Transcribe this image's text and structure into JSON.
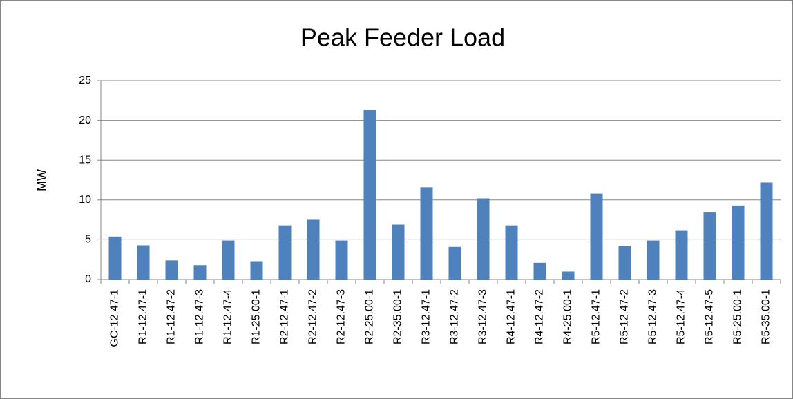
{
  "chart_data": {
    "type": "bar",
    "title": "Peak Feeder Load",
    "y_label": "MW",
    "categories": [
      "GC-12.47-1",
      "R1-12.47-1",
      "R1-12.47-2",
      "R1-12.47-3",
      "R1-12.47-4",
      "R1-25.00-1",
      "R2-12.47-1",
      "R2-12.47-2",
      "R2-12.47-3",
      "R2-25.00-1",
      "R2-35.00-1",
      "R3-12.47-1",
      "R3-12.47-2",
      "R3-12.47-3",
      "R4-12.47-1",
      "R4-12.47-2",
      "R4-25.00-1",
      "R5-12.47-1",
      "R5-12.47-2",
      "R5-12.47-3",
      "R5-12.47-4",
      "R5-12.47-5",
      "R5-25.00-1",
      "R5-35.00-1"
    ],
    "values": [
      5.4,
      4.3,
      2.4,
      1.8,
      4.9,
      2.3,
      6.8,
      7.6,
      4.9,
      21.3,
      6.9,
      11.6,
      4.1,
      10.2,
      6.8,
      2.1,
      1.0,
      10.8,
      4.2,
      4.9,
      6.2,
      8.5,
      9.3,
      12.2
    ],
    "color": "#4f81bd",
    "ylim": [
      0,
      25
    ],
    "yticks": [
      0,
      5,
      10,
      15,
      20,
      25
    ],
    "grid": true
  }
}
